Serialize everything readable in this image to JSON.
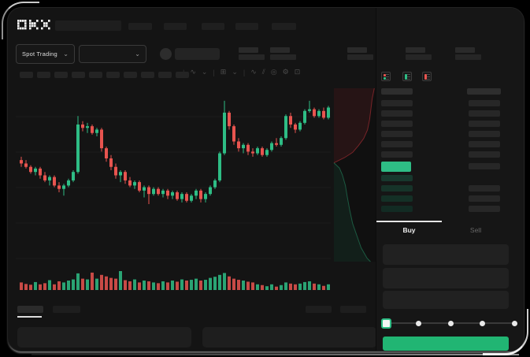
{
  "app": {
    "brand": "OKX"
  },
  "header": {
    "nav_placeholder_count": 5
  },
  "subheader": {
    "market_selector": {
      "label": "Spot Trading",
      "chevron": "⌄"
    },
    "pair_selector": {
      "chevron": "⌄"
    },
    "stat_placeholder_count": 5
  },
  "toolbar": {
    "placeholder_count": 10,
    "icons": [
      {
        "name": "separator",
        "glyph": "|"
      },
      {
        "name": "wave-indicator-icon",
        "glyph": "∿"
      },
      {
        "name": "chevron-down-icon",
        "glyph": "⌄"
      },
      {
        "name": "separator",
        "glyph": "|"
      },
      {
        "name": "indicator-panel-icon",
        "glyph": "⊞"
      },
      {
        "name": "chevron-down-icon",
        "glyph": "⌄"
      },
      {
        "name": "separator",
        "glyph": "|"
      },
      {
        "name": "trendline-icon",
        "glyph": "∿"
      },
      {
        "name": "parallel-lines-icon",
        "glyph": "⫽"
      },
      {
        "name": "camera-icon",
        "glyph": "◎"
      },
      {
        "name": "settings-gear-icon",
        "glyph": "⚙"
      },
      {
        "name": "fullscreen-icon",
        "glyph": "⊡"
      }
    ]
  },
  "chart_data": {
    "type": "candlestick",
    "up_color": "#2ebd85",
    "down_color": "#e8544f",
    "grid": true,
    "price_scale": [
      0,
      100
    ],
    "candles": [
      [
        59,
        61,
        55,
        57
      ],
      [
        57,
        59,
        54,
        55
      ],
      [
        55,
        56,
        51,
        52
      ],
      [
        52,
        55,
        50,
        54
      ],
      [
        54,
        55,
        48,
        50
      ],
      [
        50,
        52,
        46,
        47
      ],
      [
        47,
        50,
        44,
        49
      ],
      [
        49,
        50,
        43,
        44
      ],
      [
        44,
        46,
        40,
        42
      ],
      [
        42,
        45,
        38,
        44
      ],
      [
        44,
        48,
        43,
        47
      ],
      [
        47,
        53,
        46,
        52
      ],
      [
        52,
        85,
        51,
        80
      ],
      [
        80,
        82,
        76,
        78
      ],
      [
        78,
        81,
        75,
        79
      ],
      [
        79,
        80,
        74,
        75
      ],
      [
        75,
        78,
        73,
        77
      ],
      [
        77,
        78,
        64,
        66
      ],
      [
        66,
        67,
        58,
        60
      ],
      [
        60,
        62,
        53,
        55
      ],
      [
        55,
        57,
        48,
        50
      ],
      [
        50,
        53,
        46,
        52
      ],
      [
        52,
        53,
        45,
        47
      ],
      [
        47,
        49,
        43,
        44
      ],
      [
        44,
        47,
        42,
        46
      ],
      [
        46,
        47,
        40,
        41
      ],
      [
        41,
        44,
        37,
        43
      ],
      [
        43,
        44,
        33,
        39
      ],
      [
        39,
        43,
        38,
        42
      ],
      [
        42,
        43,
        38,
        39
      ],
      [
        39,
        42,
        37,
        41
      ],
      [
        41,
        42,
        36,
        38
      ],
      [
        38,
        41,
        36,
        40
      ],
      [
        40,
        41,
        35,
        36
      ],
      [
        36,
        40,
        34,
        39
      ],
      [
        39,
        40,
        34,
        35
      ],
      [
        35,
        39,
        34,
        38
      ],
      [
        38,
        42,
        36,
        41
      ],
      [
        41,
        42,
        34,
        36
      ],
      [
        36,
        40,
        34,
        39
      ],
      [
        39,
        44,
        38,
        43
      ],
      [
        43,
        48,
        42,
        47
      ],
      [
        47,
        64,
        46,
        63
      ],
      [
        63,
        94,
        62,
        87
      ],
      [
        87,
        88,
        77,
        79
      ],
      [
        79,
        80,
        68,
        70
      ],
      [
        70,
        72,
        64,
        66
      ],
      [
        66,
        69,
        63,
        68
      ],
      [
        68,
        69,
        62,
        64
      ],
      [
        64,
        66,
        61,
        63
      ],
      [
        63,
        67,
        62,
        66
      ],
      [
        66,
        67,
        61,
        62
      ],
      [
        62,
        66,
        61,
        65
      ],
      [
        65,
        70,
        64,
        69
      ],
      [
        69,
        72,
        67,
        68
      ],
      [
        68,
        73,
        67,
        72
      ],
      [
        72,
        86,
        71,
        85
      ],
      [
        85,
        87,
        78,
        80
      ],
      [
        80,
        81,
        75,
        77
      ],
      [
        77,
        82,
        76,
        81
      ],
      [
        81,
        89,
        80,
        88
      ],
      [
        88,
        94,
        87,
        89
      ],
      [
        89,
        90,
        84,
        85
      ],
      [
        85,
        89,
        84,
        88
      ],
      [
        88,
        90,
        83,
        84
      ],
      [
        84,
        91,
        83,
        90
      ]
    ],
    "volume": [
      0.4,
      0.32,
      0.28,
      0.42,
      0.3,
      0.36,
      0.52,
      0.3,
      0.46,
      0.4,
      0.5,
      0.56,
      0.88,
      0.6,
      0.56,
      0.92,
      0.6,
      0.8,
      0.72,
      0.64,
      0.6,
      1.0,
      0.52,
      0.46,
      0.56,
      0.4,
      0.5,
      0.46,
      0.4,
      0.36,
      0.46,
      0.4,
      0.5,
      0.44,
      0.56,
      0.5,
      0.54,
      0.6,
      0.5,
      0.54,
      0.64,
      0.7,
      0.8,
      0.9,
      0.72,
      0.6,
      0.54,
      0.5,
      0.44,
      0.4,
      0.3,
      0.26,
      0.2,
      0.3,
      0.18,
      0.26,
      0.4,
      0.34,
      0.3,
      0.34,
      0.42,
      0.46,
      0.34,
      0.3,
      0.22,
      0.3
    ],
    "depth": {
      "asks_curve": [
        [
          0.95,
          0
        ],
        [
          0.9,
          0.06
        ],
        [
          0.87,
          0.12
        ],
        [
          0.84,
          0.18
        ],
        [
          0.79,
          0.24
        ],
        [
          0.7,
          0.29
        ],
        [
          0.58,
          0.33
        ],
        [
          0.44,
          0.37
        ],
        [
          0.25,
          0.4
        ],
        [
          0.08,
          0.42
        ],
        [
          0,
          0.43
        ]
      ],
      "bids_curve": [
        [
          0,
          0.43
        ],
        [
          0.13,
          0.46
        ],
        [
          0.2,
          0.5
        ],
        [
          0.27,
          0.56
        ],
        [
          0.31,
          0.62
        ],
        [
          0.37,
          0.7
        ],
        [
          0.44,
          0.78
        ],
        [
          0.54,
          0.85
        ],
        [
          0.64,
          0.92
        ],
        [
          0.78,
          0.98
        ],
        [
          0.86,
          1.0
        ]
      ],
      "asks_fill": "rgba(234,57,67,0.10)",
      "bids_fill": "rgba(46,189,133,0.09)",
      "asks_line": "rgba(234,57,67,0.45)",
      "bids_line": "rgba(46,189,133,0.4)"
    }
  },
  "orderbook": {
    "mode_icons": [
      "book-both-icon",
      "book-bids-icon",
      "book-asks-icon"
    ],
    "rows": [
      {
        "type": "ask",
        "left": true,
        "right": true
      },
      {
        "type": "ask",
        "left": true,
        "right": true
      },
      {
        "type": "ask",
        "left": true,
        "right": true
      },
      {
        "type": "ask",
        "left": true,
        "right": true
      },
      {
        "type": "ask",
        "left": true,
        "right": true
      },
      {
        "type": "ask",
        "left": true,
        "right": true
      },
      {
        "type": "last-price",
        "left": true,
        "right": true
      },
      {
        "type": "bid",
        "left": true,
        "right": false
      },
      {
        "type": "bid",
        "left": true,
        "right": true
      },
      {
        "type": "bid",
        "left": true,
        "right": true
      },
      {
        "type": "bid",
        "left": true,
        "right": true
      }
    ],
    "colors": {
      "placeholder": "#272727",
      "highlight": "#2ebd85",
      "bid_bars": [
        "#17382d",
        "#163329",
        "#143026",
        "#122b23"
      ]
    }
  },
  "trade_panel": {
    "tabs": [
      {
        "label": "Buy"
      },
      {
        "label": "Sell"
      }
    ],
    "active_tab": "Buy",
    "input_count": 3,
    "slider": {
      "dot_count": 5,
      "handle_index": 0
    },
    "buy_button_color": "#21b573"
  }
}
